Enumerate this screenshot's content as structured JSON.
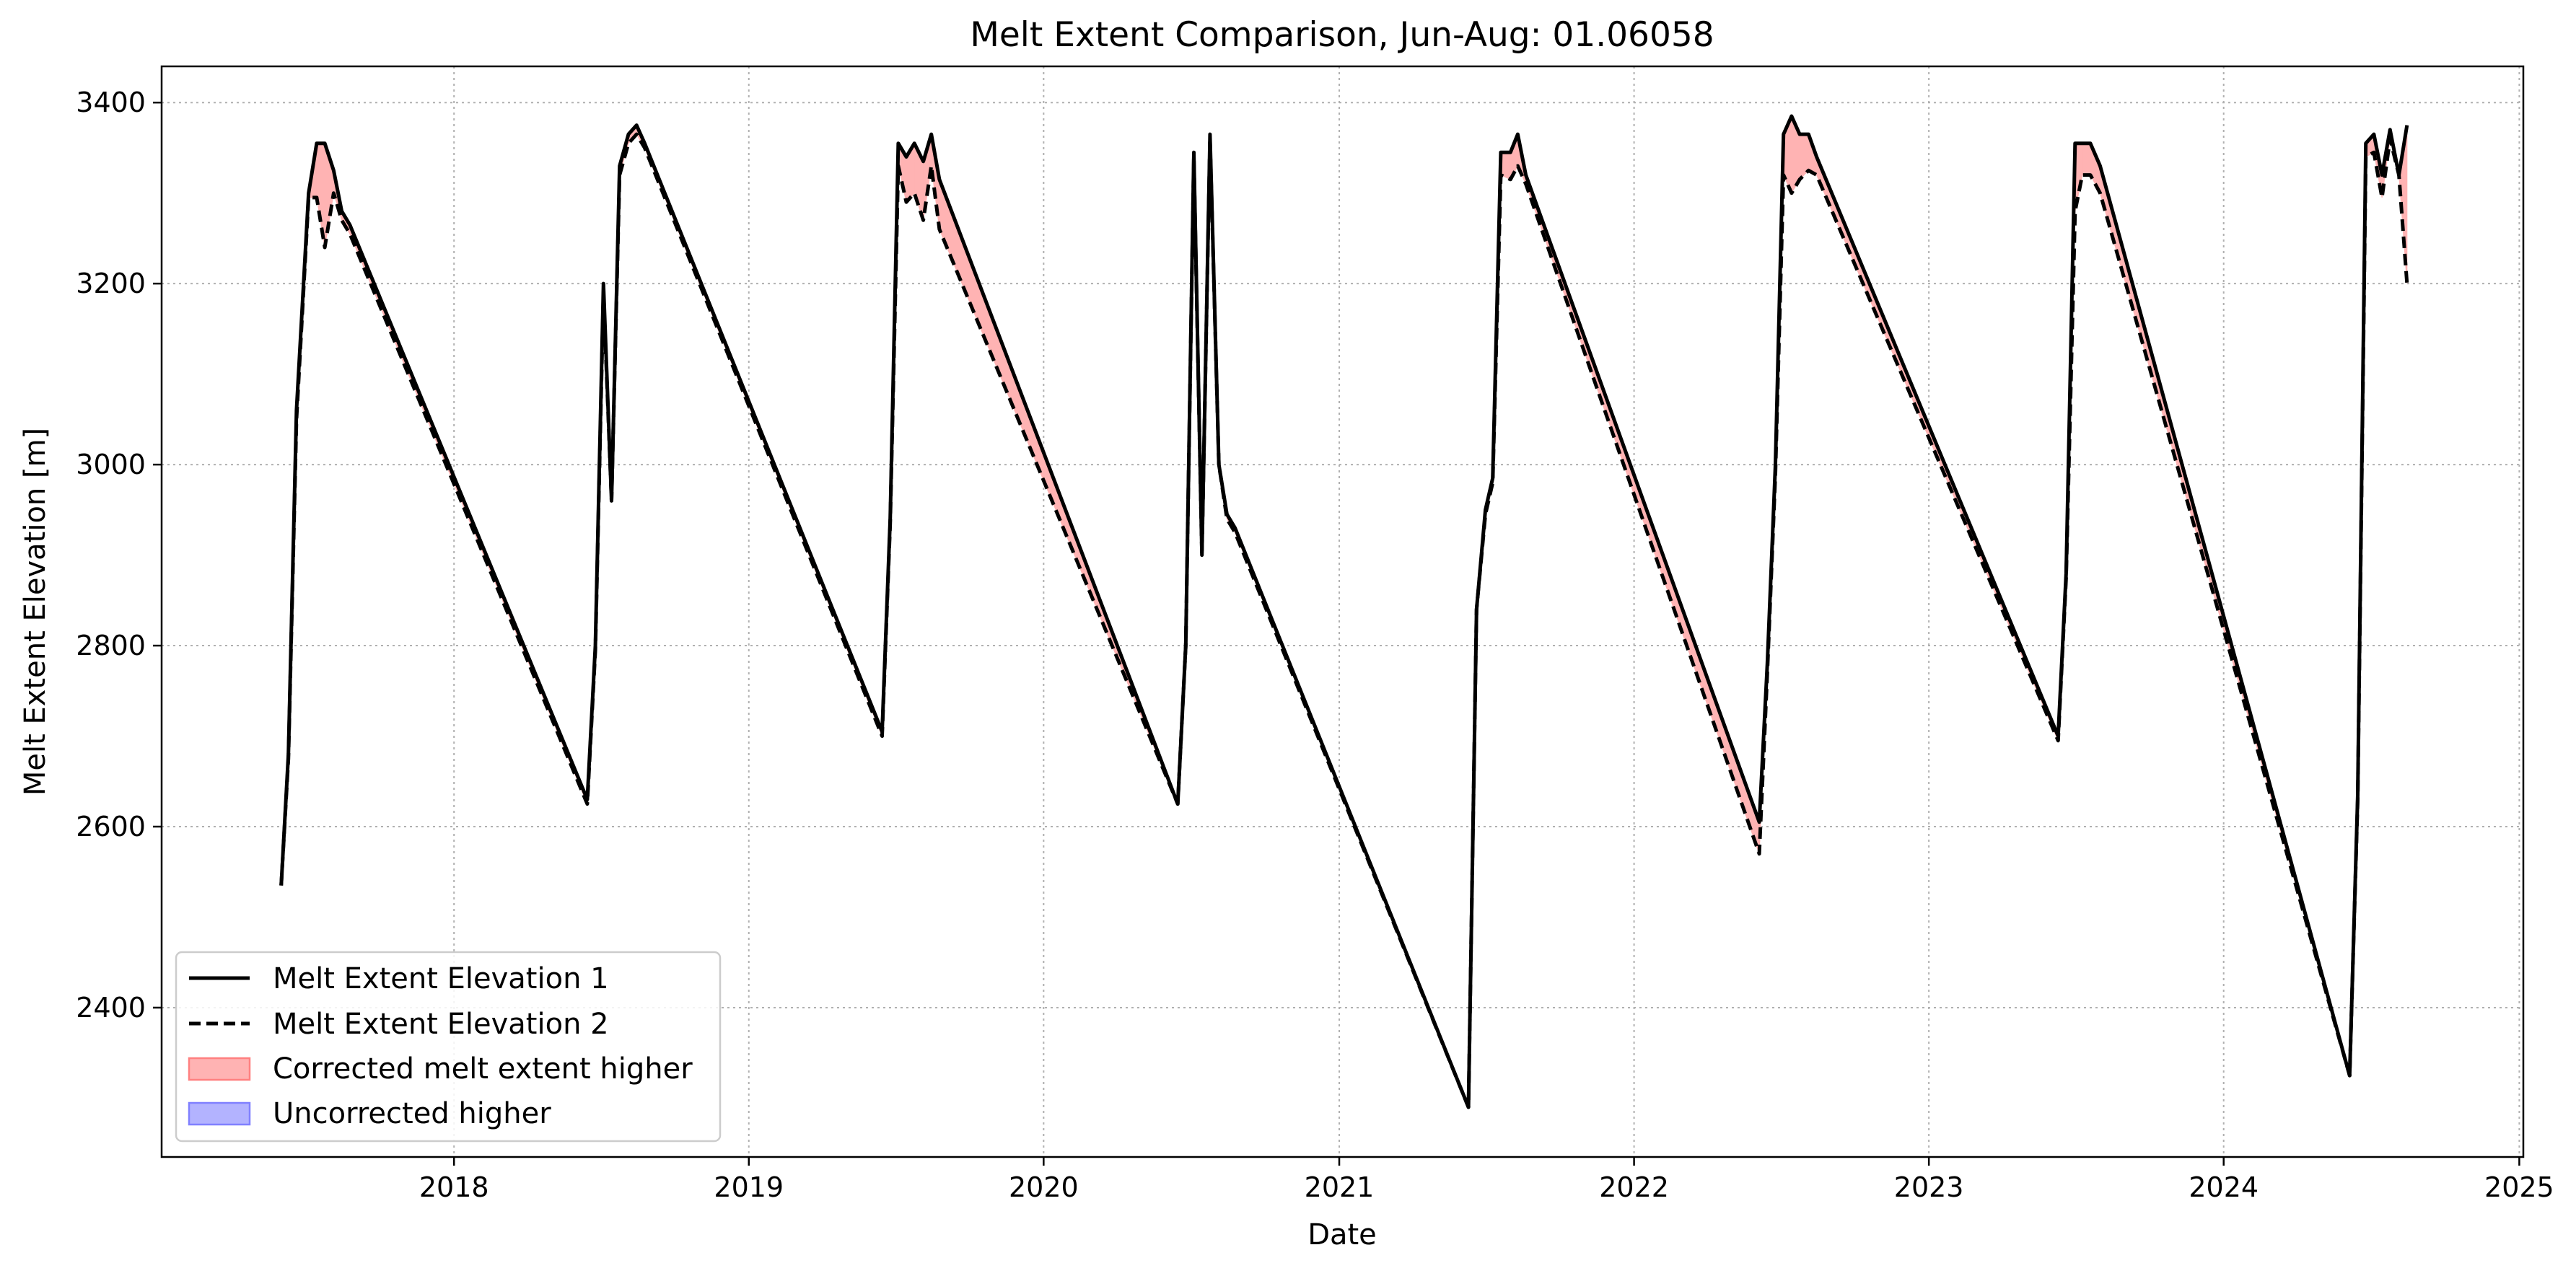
{
  "chart_data": {
    "type": "line",
    "title": "Melt Extent Comparison, Jun-Aug: 01.06058",
    "xlabel": "Date",
    "ylabel": "Melt Extent Elevation [m]",
    "xlim": [
      "2017-01-04",
      "2025-01-06"
    ],
    "ylim": [
      2235,
      3440
    ],
    "x_ticks": [
      "2018",
      "2019",
      "2020",
      "2021",
      "2022",
      "2023",
      "2024",
      "2025"
    ],
    "y_ticks": [
      2400,
      2600,
      2800,
      3000,
      3200,
      3400
    ],
    "grid": true,
    "legend_position": "lower-left",
    "legend": [
      {
        "label": "Melt Extent Elevation 1",
        "style": "solid-line"
      },
      {
        "label": "Melt Extent Elevation 2",
        "style": "dashed-line"
      },
      {
        "label": "Corrected melt extent higher",
        "style": "fill",
        "color": "#ffb3b3"
      },
      {
        "label": "Uncorrected higher",
        "style": "fill",
        "color": "#b3b3ff"
      }
    ],
    "colors": {
      "line": "#000000",
      "fill_higher": "#ffb3b3",
      "fill_higher_edge": "#ff8080",
      "fill_lower": "#b3b3ff",
      "fill_lower_edge": "#8080ff",
      "grid": "#b0b0b0"
    },
    "series": [
      {
        "name": "Melt Extent Elevation 1",
        "x": [
          "2017-06-01",
          "2017-06-10",
          "2017-06-20",
          "2017-07-05",
          "2017-07-15",
          "2017-07-25",
          "2017-08-05",
          "2017-08-15",
          "2017-08-25",
          "2018-06-15",
          "2018-06-25",
          "2018-07-05",
          "2018-07-15",
          "2018-07-25",
          "2018-08-05",
          "2018-08-15",
          "2018-08-25",
          "2019-06-15",
          "2019-06-25",
          "2019-07-05",
          "2019-07-15",
          "2019-07-25",
          "2019-08-05",
          "2019-08-15",
          "2019-08-25",
          "2020-06-15",
          "2020-06-25",
          "2020-07-05",
          "2020-07-15",
          "2020-07-25",
          "2020-08-05",
          "2020-08-15",
          "2020-08-25",
          "2021-06-10",
          "2021-06-20",
          "2021-07-01",
          "2021-07-10",
          "2021-07-20",
          "2021-08-01",
          "2021-08-10",
          "2021-08-20",
          "2022-06-05",
          "2022-06-15",
          "2022-06-25",
          "2022-07-05",
          "2022-07-15",
          "2022-07-25",
          "2022-08-05",
          "2022-08-15",
          "2023-06-10",
          "2023-06-20",
          "2023-07-01",
          "2023-07-10",
          "2023-07-20",
          "2023-08-01",
          "2024-06-05",
          "2024-06-15",
          "2024-06-25",
          "2024-07-05",
          "2024-07-15",
          "2024-07-25",
          "2024-08-05",
          "2024-08-15"
        ],
        "y": [
          2535,
          2680,
          3060,
          3300,
          3355,
          3355,
          3325,
          3280,
          3265,
          2630,
          2800,
          3200,
          2960,
          3330,
          3365,
          3375,
          3355,
          2705,
          2940,
          3355,
          3340,
          3355,
          3335,
          3365,
          3315,
          2625,
          2800,
          3345,
          2900,
          3365,
          3000,
          2945,
          2930,
          2290,
          2840,
          2950,
          2985,
          3345,
          3345,
          3365,
          3320,
          2605,
          2780,
          3000,
          3365,
          3385,
          3365,
          3365,
          3340,
          2700,
          2880,
          3355,
          3355,
          3355,
          3330,
          2325,
          2635,
          3355,
          3365,
          3320,
          3370,
          3320,
          3375
        ]
      },
      {
        "name": "Melt Extent Elevation 2",
        "x": [
          "2017-06-01",
          "2017-06-10",
          "2017-06-20",
          "2017-07-05",
          "2017-07-15",
          "2017-07-25",
          "2017-08-05",
          "2017-08-15",
          "2017-08-25",
          "2018-06-15",
          "2018-06-25",
          "2018-07-05",
          "2018-07-15",
          "2018-07-25",
          "2018-08-05",
          "2018-08-15",
          "2018-08-25",
          "2019-06-15",
          "2019-06-25",
          "2019-07-05",
          "2019-07-15",
          "2019-07-25",
          "2019-08-05",
          "2019-08-15",
          "2019-08-25",
          "2020-06-15",
          "2020-06-25",
          "2020-07-05",
          "2020-07-15",
          "2020-07-25",
          "2020-08-05",
          "2020-08-15",
          "2020-08-25",
          "2021-06-10",
          "2021-06-20",
          "2021-07-01",
          "2021-07-10",
          "2021-07-20",
          "2021-08-01",
          "2021-08-10",
          "2021-08-20",
          "2022-06-05",
          "2022-06-15",
          "2022-06-25",
          "2022-07-05",
          "2022-07-15",
          "2022-07-25",
          "2022-08-05",
          "2022-08-15",
          "2023-06-10",
          "2023-06-20",
          "2023-07-01",
          "2023-07-10",
          "2023-07-20",
          "2023-08-01",
          "2024-06-05",
          "2024-06-15",
          "2024-06-25",
          "2024-07-05",
          "2024-07-15",
          "2024-07-25",
          "2024-08-05",
          "2024-08-15"
        ],
        "y": [
          2535,
          2675,
          3050,
          3295,
          3295,
          3240,
          3300,
          3270,
          3255,
          2625,
          2795,
          3190,
          2960,
          3320,
          3355,
          3365,
          3350,
          2700,
          2935,
          3330,
          3290,
          3300,
          3270,
          3330,
          3260,
          2625,
          2800,
          3340,
          2900,
          3360,
          3000,
          2940,
          2925,
          2290,
          2840,
          2945,
          2980,
          3320,
          3315,
          3330,
          3310,
          2570,
          2770,
          2990,
          3320,
          3300,
          3315,
          3325,
          3320,
          2695,
          2875,
          3280,
          3320,
          3320,
          3300,
          2325,
          2630,
          3340,
          3345,
          3295,
          3360,
          3320,
          3200
        ]
      }
    ]
  }
}
